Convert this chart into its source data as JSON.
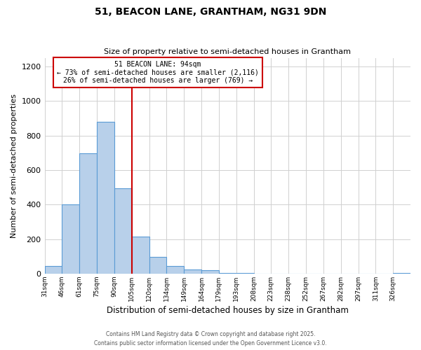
{
  "title": "51, BEACON LANE, GRANTHAM, NG31 9DN",
  "subtitle": "Size of property relative to semi-detached houses in Grantham",
  "xlabel": "Distribution of semi-detached houses by size in Grantham",
  "ylabel": "Number of semi-detached properties",
  "bar_labels": [
    "31sqm",
    "46sqm",
    "61sqm",
    "75sqm",
    "90sqm",
    "105sqm",
    "120sqm",
    "134sqm",
    "149sqm",
    "164sqm",
    "179sqm",
    "193sqm",
    "208sqm",
    "223sqm",
    "238sqm",
    "252sqm",
    "267sqm",
    "282sqm",
    "297sqm",
    "311sqm",
    "326sqm"
  ],
  "bar_values": [
    45,
    400,
    695,
    880,
    495,
    215,
    95,
    45,
    25,
    20,
    5,
    2,
    0,
    0,
    0,
    0,
    0,
    0,
    0,
    0,
    3
  ],
  "bar_color": "#b8d0ea",
  "bar_edge_color": "#5b9bd5",
  "property_label": "51 BEACON LANE: 94sqm",
  "annotation_line1": "← 73% of semi-detached houses are smaller (2,116)",
  "annotation_line2": "26% of semi-detached houses are larger (769) →",
  "vline_bin_index": 4,
  "vline_color": "#cc0000",
  "annotation_box_color": "#cc0000",
  "ylim": [
    0,
    1250
  ],
  "yticks": [
    0,
    200,
    400,
    600,
    800,
    1000,
    1200
  ],
  "footer1": "Contains HM Land Registry data © Crown copyright and database right 2025.",
  "footer2": "Contains public sector information licensed under the Open Government Licence v3.0.",
  "bg_color": "#ffffff",
  "grid_color": "#d0d0d0",
  "n_bins": 21
}
